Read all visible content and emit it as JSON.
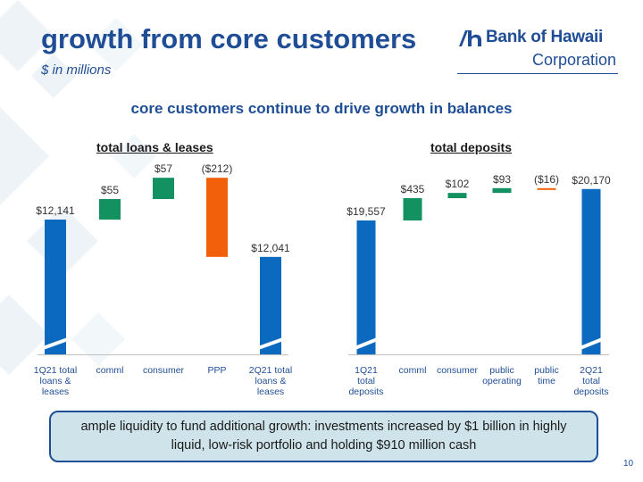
{
  "slide": {
    "title": "growth from core customers",
    "subtitle": "$ in millions",
    "headline": "core customers continue to drive growth in balances",
    "callout": "ample liquidity to fund additional growth: investments increased by $1 billion in highly liquid, low-risk portfolio and holding $910 million cash",
    "page_number": "10"
  },
  "logo": {
    "name": "Bank of Hawaii",
    "corporation": "Corporation",
    "icon": "bank-of-hawaii-logo-icon"
  },
  "colors": {
    "brand_blue": "#1f4e96",
    "bar_blue": "#0b6abf",
    "increase_green": "#139160",
    "decrease_orange": "#f2600c",
    "callout_fill": "#cfe4ea"
  },
  "chart_data": [
    {
      "type": "waterfall",
      "title": "total loans & leases",
      "categories": [
        "1Q21 total loans & leases",
        "comml",
        "consumer",
        "PPP",
        "2Q21 total loans & leases"
      ],
      "values": [
        12141,
        55,
        57,
        -212,
        12041
      ],
      "labels": [
        "$12,141",
        "$55",
        "$57",
        "($212)",
        "$12,041"
      ],
      "kinds": [
        "total",
        "delta",
        "delta",
        "delta",
        "total"
      ],
      "axis_break": true
    },
    {
      "type": "waterfall",
      "title": "total deposits",
      "categories": [
        "1Q21 total deposits",
        "comml",
        "consumer",
        "public operating",
        "public time",
        "2Q21 total deposits"
      ],
      "values": [
        19557,
        435,
        102,
        93,
        -16,
        20170
      ],
      "labels": [
        "$19,557",
        "$435",
        "$102",
        "$93",
        "($16)",
        "$20,170"
      ],
      "kinds": [
        "total",
        "delta",
        "delta",
        "delta",
        "delta",
        "total"
      ],
      "axis_break": true
    }
  ]
}
